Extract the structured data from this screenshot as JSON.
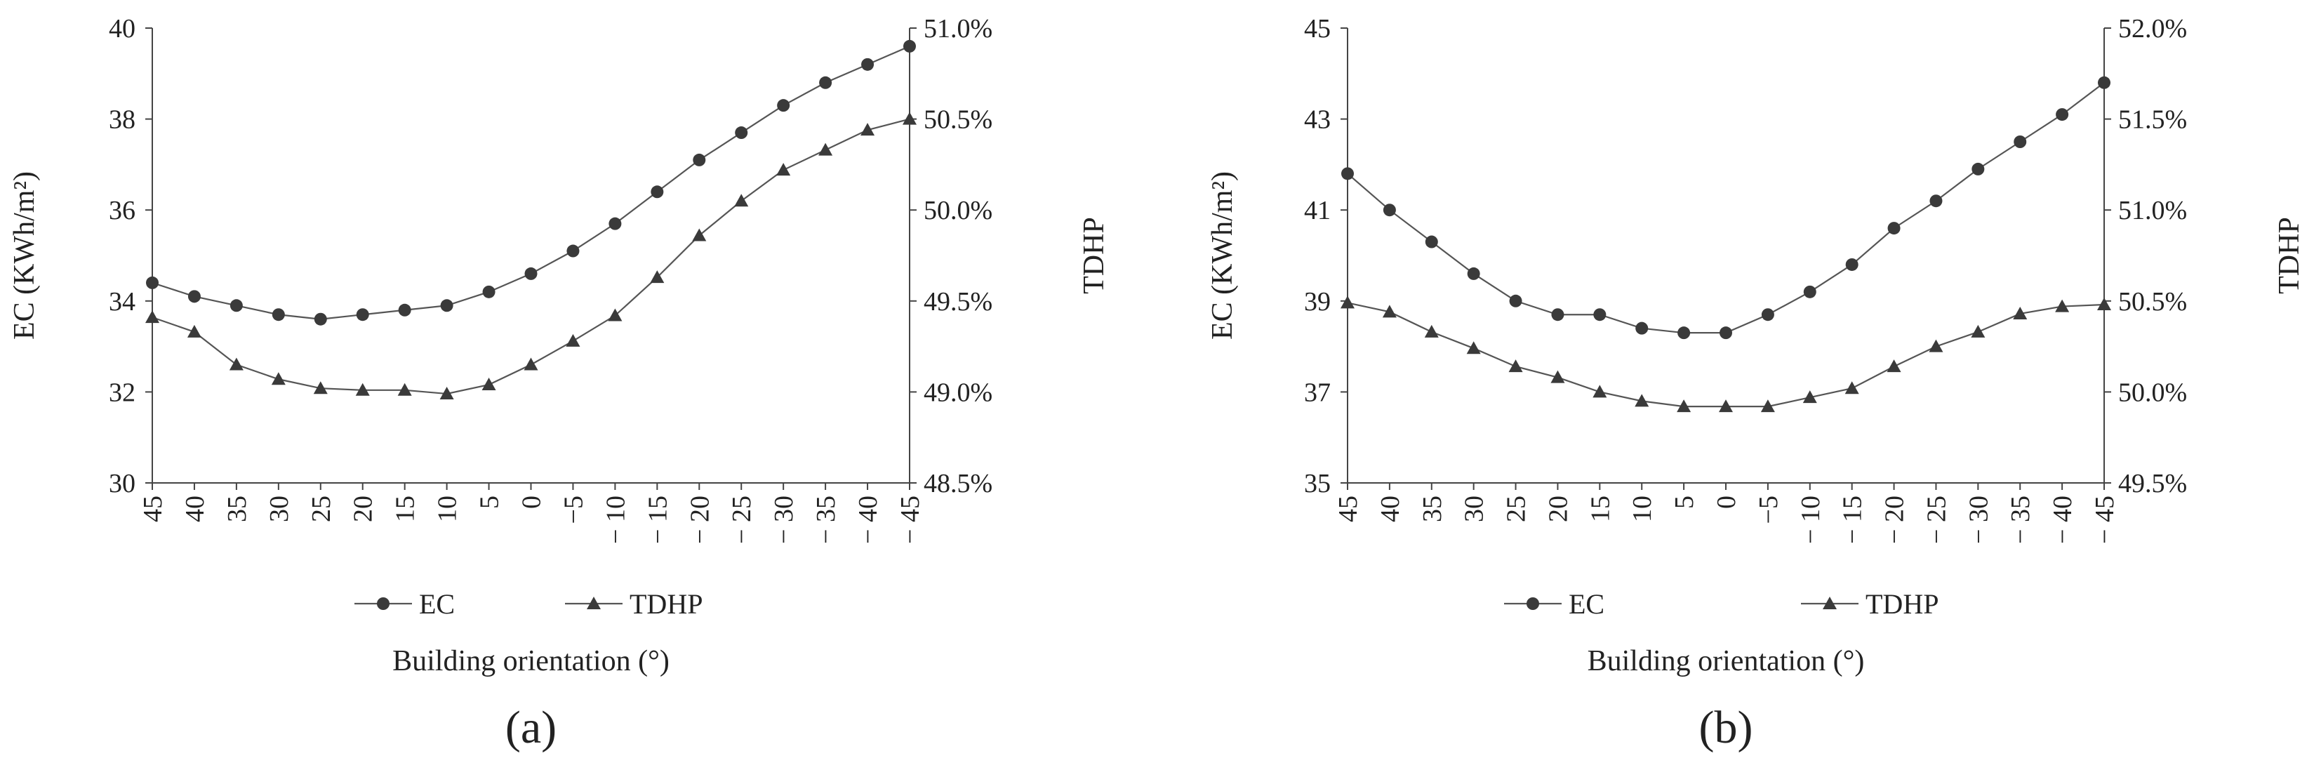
{
  "chart_data": [
    {
      "type": "line",
      "panel_label": "(a)",
      "categories": [
        "45",
        "40",
        "35",
        "30",
        "25",
        "20",
        "15",
        "10",
        "5",
        "0",
        "−5",
        "− 10",
        "− 15",
        "− 20",
        "− 25",
        "− 30",
        "− 35",
        "− 40",
        "− 45"
      ],
      "xlabel": "Building orientation (°)",
      "ylabel": "EC (KWh/m²)",
      "y2label": "TDHP",
      "ylim": [
        30,
        40
      ],
      "yticks": [
        "30",
        "32",
        "34",
        "36",
        "38",
        "40"
      ],
      "y2lim": [
        48.5,
        51.0
      ],
      "y2ticks": [
        "48.5%",
        "49.0%",
        "49.5%",
        "50.0%",
        "50.5%",
        "51.0%"
      ],
      "grid": false,
      "legend_position": "bottom",
      "series": [
        {
          "name": "EC",
          "axis": "left",
          "marker": "circle",
          "values": [
            34.4,
            34.1,
            33.9,
            33.7,
            33.6,
            33.7,
            33.8,
            33.9,
            34.2,
            34.6,
            35.1,
            35.7,
            36.4,
            37.1,
            37.7,
            38.3,
            38.8,
            39.2,
            39.6
          ]
        },
        {
          "name": "TDHP",
          "axis": "right",
          "marker": "triangle",
          "values": [
            49.41,
            49.33,
            49.15,
            49.07,
            49.02,
            49.01,
            49.01,
            48.99,
            49.04,
            49.15,
            49.28,
            49.42,
            49.63,
            49.86,
            50.05,
            50.22,
            50.33,
            50.44,
            50.5
          ]
        }
      ]
    },
    {
      "type": "line",
      "panel_label": "(b)",
      "categories": [
        "45",
        "40",
        "35",
        "30",
        "25",
        "20",
        "15",
        "10",
        "5",
        "0",
        "−5",
        "− 10",
        "− 15",
        "− 20",
        "− 25",
        "− 30",
        "− 35",
        "− 40",
        "− 45"
      ],
      "xlabel": "Building orientation (°)",
      "ylabel": "EC (KWh/m²)",
      "y2label": "TDHP",
      "ylim": [
        35,
        45
      ],
      "yticks": [
        "35",
        "37",
        "39",
        "41",
        "43",
        "45"
      ],
      "y2lim": [
        49.5,
        52.0
      ],
      "y2ticks": [
        "49.5%",
        "50.0%",
        "50.5%",
        "51.0%",
        "51.5%",
        "52.0%"
      ],
      "grid": false,
      "legend_position": "bottom",
      "series": [
        {
          "name": "EC",
          "axis": "left",
          "marker": "circle",
          "values": [
            41.8,
            41.0,
            40.3,
            39.6,
            39.0,
            38.7,
            38.7,
            38.4,
            38.3,
            38.3,
            38.7,
            39.2,
            39.8,
            40.6,
            41.2,
            41.9,
            42.5,
            43.1,
            43.8
          ]
        },
        {
          "name": "TDHP",
          "axis": "right",
          "marker": "triangle",
          "values": [
            50.49,
            50.44,
            50.33,
            50.24,
            50.14,
            50.08,
            50.0,
            49.95,
            49.92,
            49.92,
            49.92,
            49.97,
            50.02,
            50.14,
            50.25,
            50.33,
            50.43,
            50.47,
            50.48
          ]
        }
      ]
    }
  ]
}
